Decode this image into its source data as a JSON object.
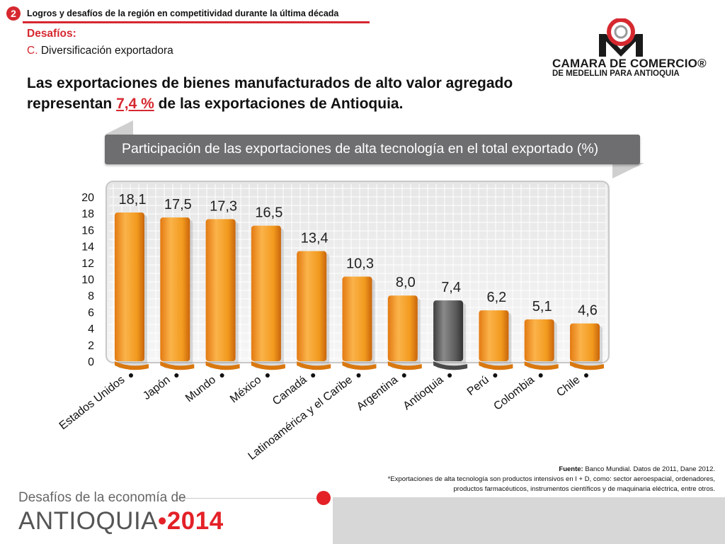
{
  "header": {
    "badge": "2",
    "section_title": "Logros y desafíos de la región en competitividad durante la última década",
    "desafios": "Desafíos:",
    "sub_letter": "C.",
    "sub_text": "Diversificación exportadora",
    "headline_pre": "Las exportaciones de bienes manufacturados de alto valor agregado representan",
    "headline_value": "7,4 %",
    "headline_post": "de las exportaciones de Antioquia."
  },
  "logo": {
    "line1": "CAMARA DE COMERCIO®",
    "line2": "DE MEDELLIN PARA ANTIOQUIA"
  },
  "colors": {
    "accent_red": "#d6282f",
    "bar_orange": "#f29a1e",
    "bar_highlight": "#5b5b5b"
  },
  "chart_data": {
    "type": "bar",
    "title": "Participación de las exportaciones de alta tecnología en el total exportado (%)",
    "categories": [
      "Estados Unidos",
      "Japón",
      "Mundo",
      "México",
      "Canadá",
      "Latinoamérica y el Caribe",
      "Argentina",
      "Antioquia",
      "Perú",
      "Colombia",
      "Chile"
    ],
    "values": [
      18.1,
      17.5,
      17.3,
      16.5,
      13.4,
      10.3,
      8.0,
      7.4,
      6.2,
      5.1,
      4.6
    ],
    "value_labels": [
      "18,1",
      "17,5",
      "17,3",
      "16,5",
      "13,4",
      "10,3",
      "8,0",
      "7,4",
      "6,2",
      "5,1",
      "4,6"
    ],
    "highlight": "Antioquia",
    "ylim": [
      0,
      20
    ],
    "yticks": [
      "0",
      "2",
      "4",
      "6",
      "8",
      "10",
      "12",
      "14",
      "16",
      "18",
      "20"
    ],
    "xlabel": "",
    "ylabel": "",
    "grid": true
  },
  "footer": {
    "source_label": "Fuente:",
    "source_text": "Banco Mundial. Datos de 2011, Dane 2012.",
    "note_line1": "*Exportaciones de alta tecnología son productos intensivos en I + D, como: sector aeroespacial, ordenadores,",
    "note_line2": "productos farmacéuticos, instrumentos científicos y de maquinaria eléctrica, entre otros.",
    "brand_sub": "Desafíos de la economía de",
    "brand_main": "ANTIOQUIA",
    "brand_dot": "•",
    "brand_year": "2014"
  }
}
